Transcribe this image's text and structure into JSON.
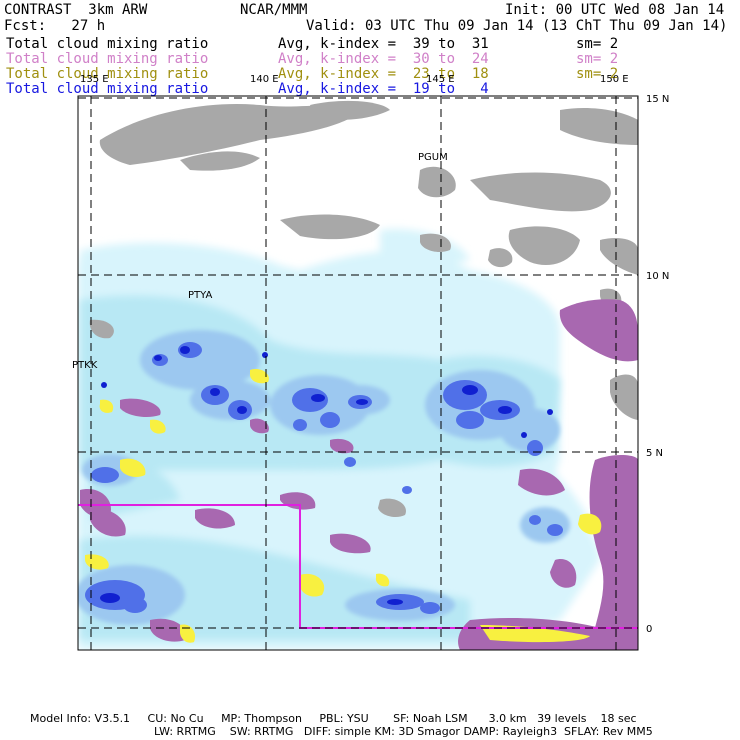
{
  "header": {
    "model": "CONTRAST  3km ARW",
    "center": "NCAR/MMM",
    "init": "Init: 00 UTC Wed 08 Jan 14",
    "fcst": "Fcst:   27 h",
    "valid": "Valid: 03 UTC Thu 09 Jan 14 (13 ChT Thu 09 Jan 14)"
  },
  "fields": [
    {
      "name": "Total cloud mixing ratio",
      "avg": "Avg, k-index =  39 to  31",
      "sm": "sm= 2",
      "color": "#000000"
    },
    {
      "name": "Total cloud mixing ratio",
      "avg": "Avg, k-index =  30 to  24",
      "sm": "sm= 2",
      "color": "#d080c8"
    },
    {
      "name": "Total cloud mixing ratio",
      "avg": "Avg, k-index =  23 to  18",
      "sm": "sm= 2",
      "color": "#a09010"
    },
    {
      "name": "Total cloud mixing ratio",
      "avg": "Avg, k-index =  19 to   4",
      "sm": "",
      "color": "#1818e0"
    }
  ],
  "axes": {
    "lon_labels": [
      "135 E",
      "140 E",
      "145 E",
      "150 E"
    ],
    "lat_labels": [
      "15 N",
      "10 N",
      "5 N",
      "0"
    ]
  },
  "stations": [
    "PGUM",
    "PTYA",
    "PTKK"
  ],
  "footer": {
    "line1": "Model Info: V3.5.1     CU: No Cu     MP: Thompson     PBL: YSU       SF: Noah LSM      3.0 km   39 levels    18 sec",
    "line2": "LW: RRTMG    SW: RRTMG   DIFF: simple KM: 3D Smagor DAMP: Rayleigh3  SFLAY: Rev MM5"
  },
  "colors": {
    "gray_cloud": "#a8a8a8",
    "light_cyan": "#d8f4fc",
    "cyan": "#b8e8f4",
    "light_blue": "#9cc8f0",
    "blue": "#5070e8",
    "dark_blue": "#1020d0",
    "purple": "#a868b0",
    "yellow": "#f8f040",
    "magenta_box": "#e020e0"
  }
}
